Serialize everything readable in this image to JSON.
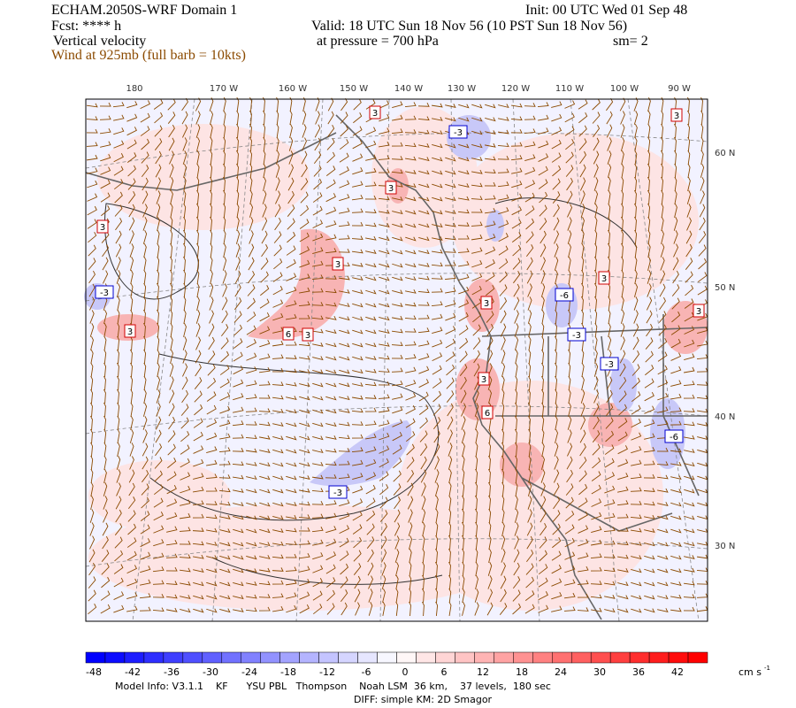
{
  "header": {
    "title": "ECHAM.2050S-WRF Domain 1",
    "init": "Init: 00 UTC Wed 01 Sep 48",
    "fcst": "Fcst: **** h",
    "valid": "Valid: 18 UTC Sun 18 Nov 56 (10 PST Sun 18 Nov 56)",
    "field": "Vertical velocity",
    "pressure": "at pressure =  700 hPa",
    "smooth": "sm= 2",
    "wind": "Wind at 925mb (full barb = 10kts)"
  },
  "map": {
    "lon_labels": [
      "180",
      "170 W",
      "160 W",
      "150 W",
      "140 W",
      "130 W",
      "120 W",
      "110 W",
      "100 W",
      "90 W"
    ],
    "lat_labels": [
      "60 N",
      "50 N",
      "40 N",
      "30 N"
    ],
    "contour_labels": [
      {
        "text": "3",
        "color": "#d00000"
      },
      {
        "text": "-3",
        "color": "#0000d0"
      },
      {
        "text": "3",
        "color": "#d00000"
      },
      {
        "text": "3",
        "color": "#d00000"
      },
      {
        "text": "-3",
        "color": "#0000d0"
      },
      {
        "text": "3",
        "color": "#d00000"
      },
      {
        "text": "3",
        "color": "#d00000"
      },
      {
        "text": "6",
        "color": "#d00000"
      },
      {
        "text": "3",
        "color": "#d00000"
      },
      {
        "text": "3",
        "color": "#d00000"
      },
      {
        "text": "-6",
        "color": "#0000d0"
      },
      {
        "text": "3",
        "color": "#d00000"
      },
      {
        "text": "-3",
        "color": "#0000d0"
      },
      {
        "text": "-3",
        "color": "#0000d0"
      },
      {
        "text": "3",
        "color": "#d00000"
      },
      {
        "text": "6",
        "color": "#d00000"
      },
      {
        "text": "-6",
        "color": "#0000d0"
      },
      {
        "text": "-3",
        "color": "#0000d0"
      },
      {
        "text": "3",
        "color": "#d00000"
      },
      {
        "text": "3",
        "color": "#d00000"
      }
    ]
  },
  "colorbar": {
    "ticks": [
      "-48",
      "-42",
      "-36",
      "-30",
      "-24",
      "-18",
      "-12",
      "-6",
      "0",
      "6",
      "12",
      "18",
      "24",
      "30",
      "36",
      "42"
    ],
    "unit": "cm s",
    "unit_exponent": "-1"
  },
  "footer": {
    "model_info": "Model Info: V3.1.1    KF      YSU PBL   Thompson    Noah LSM  36 km,    37 levels,  180 sec",
    "diff": "DIFF: simple KM: 2D Smagor"
  }
}
